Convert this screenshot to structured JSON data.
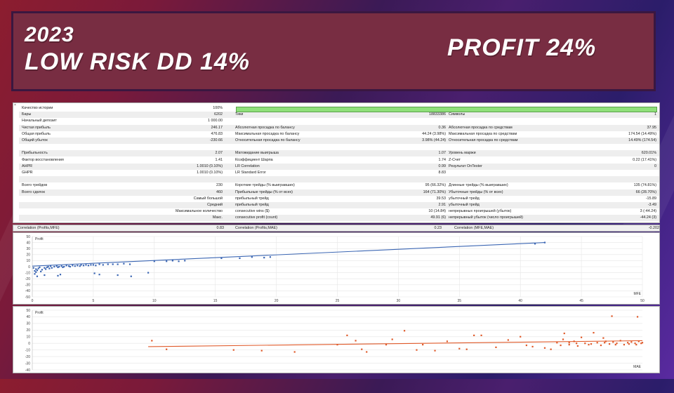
{
  "banner": {
    "year": "2023",
    "risk": "LOW RISK DD 14%",
    "profit": "PROFIT 24%"
  },
  "report": {
    "close_icon": "×",
    "rows": [
      [
        "Качество истории",
        "100%",
        "",
        "",
        "",
        ""
      ],
      [
        "Бары",
        "6202",
        "Тики",
        "18833386",
        "Символы",
        "1"
      ],
      [
        "Начальный депозит",
        "1 000.00",
        "",
        "",
        "",
        ""
      ],
      [
        "Чистая прибыль",
        "246.17",
        "Абсолютная просадка по балансу",
        "0.36",
        "Абсолютная просадка по средствам",
        "37.95"
      ],
      [
        "Общая прибыль",
        "476.83",
        "Максимальная просадка по балансу",
        "44.24 (3.98%)",
        "Максимальная просадка по средствам",
        "174.54 (14.49%)"
      ],
      [
        "Общий убыток",
        "-230.66",
        "Относительная просадка по балансу",
        "3.98% (44.24)",
        "Относительная просадка по средствам",
        "14.49% (174.54)"
      ],
      [
        "",
        "",
        "",
        "",
        "",
        ""
      ],
      [
        "Прибыльность",
        "2.07",
        "Матожидание выигрыша",
        "1.07",
        "Уровень маржи",
        "620.01%"
      ],
      [
        "Фактор восстановления",
        "1.41",
        "Коэффициент Шарпа",
        "1.74",
        "Z-Счет",
        "0.22 (17.41%)"
      ],
      [
        "AHPR",
        "1.0010 (0.10%)",
        "LR Correlation",
        "0.99",
        "Результат OnTester",
        "0"
      ],
      [
        "GHPR",
        "1.0010 (0.10%)",
        "LR Standard Error",
        "8.83",
        "",
        ""
      ],
      [
        "",
        "",
        "",
        "",
        "",
        ""
      ],
      [
        "Всего трейдов",
        "230",
        "Короткие трейды (% выигравших)",
        "95 (66.32%)",
        "Длинные трейды (% выигравших)",
        "135 (74.81%)"
      ],
      [
        "Всего сделок",
        "460",
        "Прибыльные трейды (% от всех)",
        "164 (71.30%)",
        "Убыточные трейды (% от всех)",
        "66 (28.70%)"
      ],
      [
        "",
        "Самый большой",
        "прибыльный трейд",
        "39.53",
        "убыточный трейд",
        "-15.89"
      ],
      [
        "",
        "Средний",
        "прибыльный трейд",
        "2.91",
        "убыточный трейд",
        "-3.49"
      ],
      [
        "",
        "Максимальное количество",
        "consecutive wins ($)",
        "10 (14.84)",
        "непрерывных проигрышей (убыток)",
        "3 (-44.24)"
      ],
      [
        "",
        "Макс.",
        "consecutive profit (count)",
        "49.91 (6)",
        "непрерывный убыток (число проигрышей)",
        "-44.24 (3)"
      ]
    ]
  },
  "correlation": {
    "profits_mfe_label": "Correlation (Profits,MFE)",
    "profits_mfe_value": "0.83",
    "profits_mae_label": "Correlation (Profits,MAE)",
    "profits_mae_value": "0.23",
    "mfe_mae_label": "Correlation (MFE,MAE)",
    "mfe_mae_value": "-0.202"
  },
  "chart_data": [
    {
      "type": "scatter",
      "title": "Profit",
      "xlabel": "MFE",
      "ylabel": "Profit",
      "xlim": [
        0,
        50
      ],
      "ylim": [
        -50,
        50
      ],
      "x_ticks": [
        0,
        5,
        10,
        15,
        20,
        25,
        30,
        35,
        40,
        45,
        50
      ],
      "y_ticks": [
        50,
        40,
        30,
        20,
        10,
        0,
        -10,
        -20,
        -30,
        -40,
        -50
      ],
      "grid": true,
      "point_color": "#3b66b3",
      "line_color": "#3b66b3",
      "trend": [
        [
          0,
          1
        ],
        [
          42,
          40
        ]
      ],
      "points": [
        [
          0.1,
          -2
        ],
        [
          0.2,
          -7
        ],
        [
          0.3,
          -9
        ],
        [
          0.3,
          -4
        ],
        [
          0.4,
          -6
        ],
        [
          0.5,
          -3
        ],
        [
          0.6,
          -1
        ],
        [
          0.7,
          -8
        ],
        [
          0.8,
          -5
        ],
        [
          1,
          -2
        ],
        [
          1.1,
          -4
        ],
        [
          1.2,
          -1
        ],
        [
          1.3,
          0
        ],
        [
          1.4,
          -3
        ],
        [
          1.5,
          1
        ],
        [
          1.6,
          -2
        ],
        [
          1.8,
          0
        ],
        [
          2,
          1
        ],
        [
          2.1,
          -1
        ],
        [
          2.2,
          0
        ],
        [
          2.4,
          1
        ],
        [
          2.5,
          -1
        ],
        [
          2.6,
          0
        ],
        [
          2.8,
          2
        ],
        [
          3,
          1
        ],
        [
          3.1,
          0
        ],
        [
          3.3,
          2
        ],
        [
          3.5,
          1
        ],
        [
          3.7,
          2
        ],
        [
          3.9,
          1
        ],
        [
          4,
          3
        ],
        [
          4.2,
          2
        ],
        [
          4.4,
          3
        ],
        [
          4.6,
          2
        ],
        [
          4.8,
          3
        ],
        [
          5,
          3
        ],
        [
          5.2,
          2
        ],
        [
          5.5,
          4
        ],
        [
          5.8,
          3
        ],
        [
          6.2,
          4
        ],
        [
          6.6,
          4
        ],
        [
          7,
          4
        ],
        [
          7.5,
          5
        ],
        [
          8,
          4
        ],
        [
          0.2,
          -12
        ],
        [
          0.4,
          -16
        ],
        [
          1,
          -14
        ],
        [
          2.1,
          -15
        ],
        [
          2.3,
          -13
        ],
        [
          5.1,
          -11
        ],
        [
          5.5,
          -13
        ],
        [
          7,
          -14
        ],
        [
          8.1,
          -16
        ],
        [
          9.5,
          -10
        ],
        [
          10,
          9
        ],
        [
          11,
          9
        ],
        [
          11.5,
          10
        ],
        [
          12,
          9
        ],
        [
          12.5,
          10
        ],
        [
          15.5,
          14
        ],
        [
          17,
          14
        ],
        [
          18,
          16
        ],
        [
          19,
          15
        ],
        [
          19.5,
          16
        ],
        [
          41.2,
          38
        ],
        [
          42,
          40
        ]
      ]
    },
    {
      "type": "scatter",
      "title": "Profit",
      "xlabel": "MAE",
      "ylabel": "Profit",
      "xlim": [
        0,
        50
      ],
      "ylim": [
        -40,
        50
      ],
      "x_ticks": [],
      "y_ticks": [
        50,
        40,
        30,
        20,
        10,
        0,
        -10,
        -20,
        -30,
        -40
      ],
      "grid": true,
      "point_color": "#e05a2a",
      "line_color": "#e05a2a",
      "trend": [
        [
          9.5,
          -5
        ],
        [
          50,
          4
        ]
      ],
      "points": [
        [
          9.8,
          4
        ],
        [
          11,
          -9
        ],
        [
          16.5,
          -10
        ],
        [
          18.8,
          -11
        ],
        [
          21.5,
          -13
        ],
        [
          25,
          -2
        ],
        [
          25.8,
          12
        ],
        [
          26.5,
          4
        ],
        [
          27,
          -9
        ],
        [
          27.4,
          -13
        ],
        [
          29,
          -2
        ],
        [
          29.5,
          6
        ],
        [
          30.5,
          19
        ],
        [
          31.5,
          -10
        ],
        [
          32,
          -2
        ],
        [
          33,
          -11
        ],
        [
          34,
          3
        ],
        [
          35,
          -8
        ],
        [
          35.6,
          -9
        ],
        [
          36.2,
          12
        ],
        [
          36.8,
          12
        ],
        [
          38,
          -6
        ],
        [
          39,
          5
        ],
        [
          40,
          10
        ],
        [
          40.5,
          -3
        ],
        [
          41,
          -5
        ],
        [
          42,
          -7
        ],
        [
          42.5,
          -9
        ],
        [
          43,
          1
        ],
        [
          43.3,
          -3
        ],
        [
          43.5,
          6
        ],
        [
          44,
          -2
        ],
        [
          44.4,
          3
        ],
        [
          44.7,
          -4
        ],
        [
          45,
          9
        ],
        [
          45.3,
          0
        ],
        [
          45.6,
          -2
        ],
        [
          46,
          16
        ],
        [
          46.3,
          1
        ],
        [
          46.6,
          -3
        ],
        [
          47,
          3
        ],
        [
          47.3,
          -1
        ],
        [
          47.6,
          2
        ],
        [
          47.9,
          0
        ],
        [
          48.2,
          4
        ],
        [
          48.5,
          -2
        ],
        [
          48.8,
          1
        ],
        [
          49.1,
          2
        ],
        [
          49.4,
          0
        ],
        [
          49.7,
          3
        ],
        [
          50,
          1
        ],
        [
          44,
          1
        ],
        [
          44.6,
          0
        ],
        [
          45.8,
          -1
        ],
        [
          46.9,
          1
        ],
        [
          47.8,
          -2
        ],
        [
          48.9,
          -1
        ],
        [
          49.5,
          -2
        ],
        [
          49.9,
          0
        ],
        [
          47.5,
          41
        ],
        [
          49.6,
          40
        ],
        [
          43.6,
          15
        ],
        [
          46.8,
          8
        ]
      ]
    }
  ]
}
